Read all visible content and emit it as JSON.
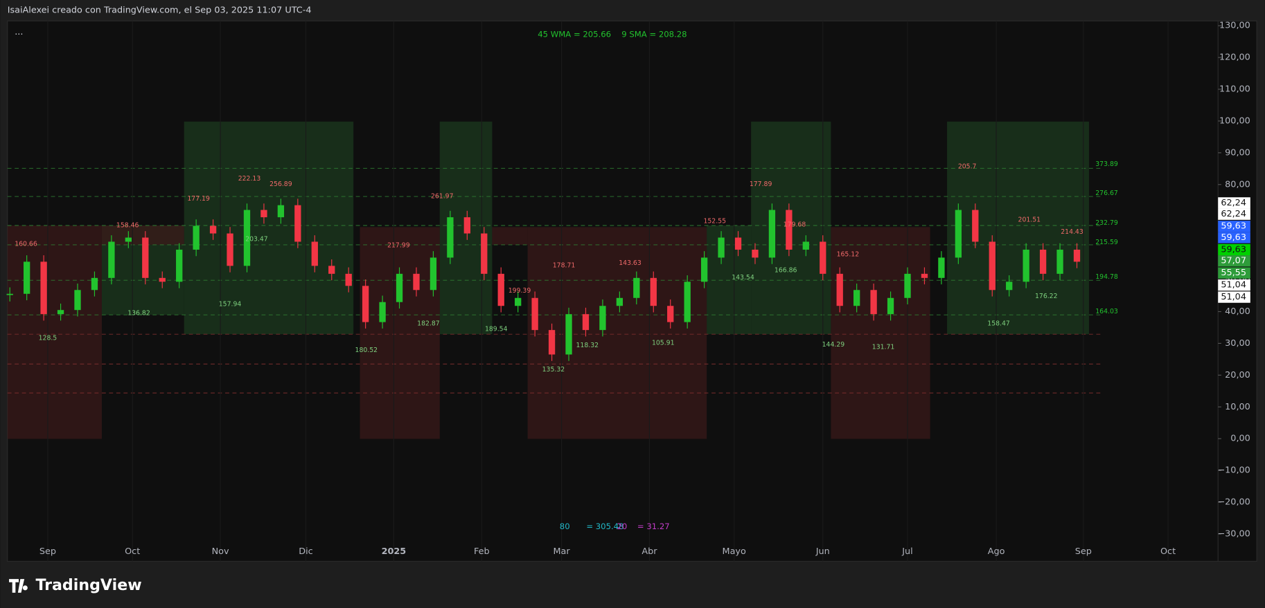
{
  "header": {
    "credit": "IsaiAlexei creado con TradingView.com, el Sep 03, 2025 11:07 UTC-4",
    "menu": "···",
    "logo": "TradingView"
  },
  "chart_data": {
    "type": "candlestick",
    "legend_top": [
      "45 WMA = 205.66",
      "9 SMA = 208.28"
    ],
    "legend_bottom": [
      "80",
      "= 305.48",
      "20",
      "= 31.27"
    ],
    "x_labels": [
      "Sep",
      "Oct",
      "Nov",
      "Dic",
      "2025",
      "Feb",
      "Mar",
      "Abr",
      "Mayo",
      "Jun",
      "Jul",
      "Ago",
      "Sep",
      "Oct"
    ],
    "ylim": [
      -38.6,
      131.5
    ],
    "yticks": [
      {
        "value": 130,
        "label": "130,00"
      },
      {
        "value": 120,
        "label": "120,00"
      },
      {
        "value": 110,
        "label": "110,00"
      },
      {
        "value": 100,
        "label": "100,00"
      },
      {
        "value": 90,
        "label": "90,00"
      },
      {
        "value": 80,
        "label": "80,00"
      },
      {
        "value": 70,
        "label": "70,00"
      },
      {
        "value": 60,
        "label": "60,00"
      },
      {
        "value": 50,
        "label": "50,00"
      },
      {
        "value": 40,
        "label": "40,00"
      },
      {
        "value": 30,
        "label": "30,00"
      },
      {
        "value": 20,
        "label": "20,00"
      },
      {
        "value": 10,
        "label": "10,00"
      },
      {
        "value": 0,
        "label": "0,00"
      },
      {
        "value": -10,
        "label": "−10,00"
      },
      {
        "value": -20,
        "label": "−20,00"
      },
      {
        "value": -30,
        "label": "−30,00"
      }
    ],
    "price_tags": [
      {
        "value": 62.24,
        "label": "62,24"
      },
      {
        "value": 62.24,
        "label": "62,24"
      },
      {
        "value": 59.63,
        "label": "59,63"
      },
      {
        "value": 59.63,
        "label": "59,63"
      },
      {
        "value": 59.63,
        "label": "59,63"
      },
      {
        "value": 57.07,
        "label": "57,07"
      },
      {
        "value": 55.55,
        "label": "55,55"
      },
      {
        "value": 51.04,
        "label": "51,04"
      },
      {
        "value": 51.04,
        "label": "51,04"
      }
    ],
    "annotations": [
      "160.66",
      "128.5",
      "158.46",
      "136.82",
      "177.19",
      "222.13",
      "203.47",
      "157.94",
      "256.89",
      "180.52",
      "217.99",
      "182.87",
      "261.97",
      "189.54",
      "199.39",
      "178.71",
      "135.32",
      "118.32",
      "143.63",
      "105.91",
      "152.55",
      "143.54",
      "177.89",
      "166.86",
      "179.68",
      "165.12",
      "144.29",
      "131.71",
      "205.7",
      "158.47",
      "201.51",
      "176.22",
      "214.43"
    ],
    "level_labels": [
      "373.89",
      "276.67",
      "232.79",
      "215.59",
      "194.78",
      "164.03"
    ],
    "up_color": "#22c32e",
    "down_color": "#f23645",
    "series": [
      {
        "values": [
          45.6,
          55.7,
          39.2,
          40.5,
          46.8,
          50.6,
          62,
          63.3,
          50.6,
          49.4,
          59.5,
          67,
          64.6,
          54.4,
          72,
          69.7,
          73.5,
          62,
          54.4,
          51.9,
          48.1,
          36.7,
          43,
          51.9,
          46.8,
          57,
          69.7,
          64.6,
          51.9,
          41.8,
          44.3,
          34.2,
          26.5,
          39.2,
          34.2,
          41.8,
          44.3,
          50.6,
          41.8,
          36.7,
          49.4,
          57,
          63.3,
          59.5,
          57,
          72,
          59.5,
          62,
          51.9,
          41.8,
          46.8,
          39.2,
          44.3,
          51.9,
          50.6,
          57,
          72,
          62,
          46.8,
          49.4,
          59.5,
          51.9,
          59.5,
          55.7
        ]
      }
    ]
  }
}
